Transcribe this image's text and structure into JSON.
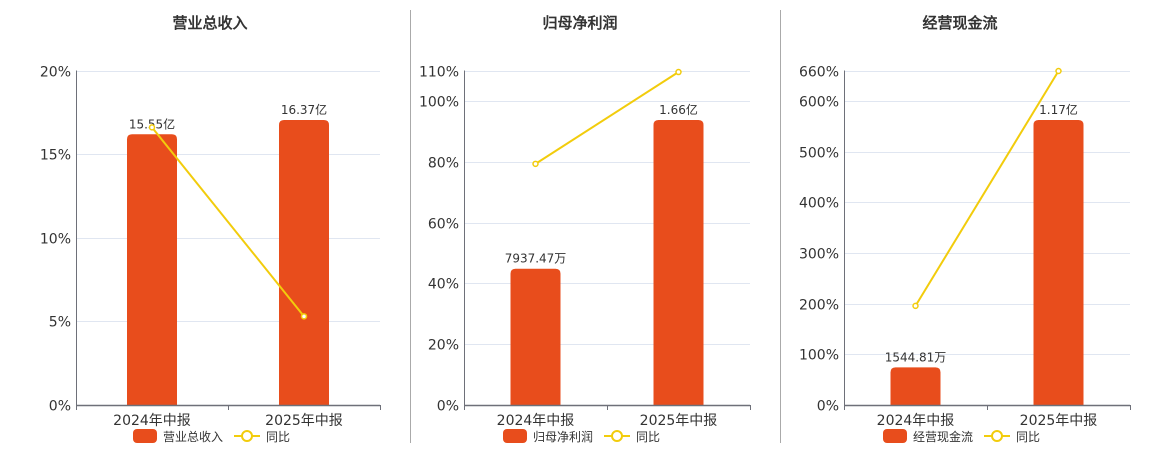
{
  "page": {
    "layout": "three side-by-side combo charts (bar + YoY line)",
    "legend_line_label": "同比"
  },
  "chart_data": [
    {
      "type": "bar",
      "title": "营业总收入",
      "xlabel": "",
      "ylabel": "",
      "categories": [
        "2024年中报",
        "2025年中报"
      ],
      "series": [
        {
          "name": "营业总收入",
          "type": "bar",
          "unit": "亿",
          "values": [
            15.55,
            16.37
          ],
          "labels": [
            "15.55亿",
            "16.37亿"
          ],
          "color": "#E84D1C"
        },
        {
          "name": "同比",
          "type": "line",
          "unit": "%",
          "values": [
            16.6,
            5.3
          ],
          "color": "#F2CC0C"
        }
      ],
      "ylim": [
        0,
        20
      ],
      "yticks": [
        0,
        5,
        10,
        15,
        20
      ],
      "ytick_labels": [
        "0%",
        "5%",
        "10%",
        "15%",
        "20%"
      ],
      "grid": true,
      "legend_position": "bottom"
    },
    {
      "type": "bar",
      "title": "归母净利润",
      "xlabel": "",
      "ylabel": "",
      "categories": [
        "2024年中报",
        "2025年中报"
      ],
      "series": [
        {
          "name": "归母净利润",
          "type": "bar",
          "unit": "亿",
          "values": [
            0.793747,
            1.66
          ],
          "labels": [
            "7937.47万",
            "1.66亿"
          ],
          "color": "#E84D1C"
        },
        {
          "name": "同比",
          "type": "line",
          "unit": "%",
          "values": [
            79.3,
            109.5
          ],
          "color": "#F2CC0C"
        }
      ],
      "ylim": [
        0,
        110
      ],
      "yticks": [
        0,
        20,
        40,
        60,
        80,
        100,
        110
      ],
      "ytick_labels": [
        "0%",
        "20%",
        "40%",
        "60%",
        "80%",
        "100%",
        "110%"
      ],
      "grid": true,
      "legend_position": "bottom"
    },
    {
      "type": "bar",
      "title": "经营现金流",
      "xlabel": "",
      "ylabel": "",
      "categories": [
        "2024年中报",
        "2025年中报"
      ],
      "series": [
        {
          "name": "经营现金流",
          "type": "bar",
          "unit": "亿",
          "values": [
            0.154481,
            1.17
          ],
          "labels": [
            "1544.81万",
            "1.17亿"
          ],
          "color": "#E84D1C"
        },
        {
          "name": "同比",
          "type": "line",
          "unit": "%",
          "values": [
            195.6,
            659
          ],
          "color": "#F2CC0C"
        }
      ],
      "ylim": [
        0,
        660
      ],
      "yticks": [
        0,
        100,
        200,
        300,
        400,
        500,
        600,
        660
      ],
      "ytick_labels": [
        "0%",
        "100%",
        "200%",
        "300%",
        "400%",
        "500%",
        "600%",
        "660%"
      ],
      "grid": true,
      "legend_position": "bottom"
    }
  ]
}
